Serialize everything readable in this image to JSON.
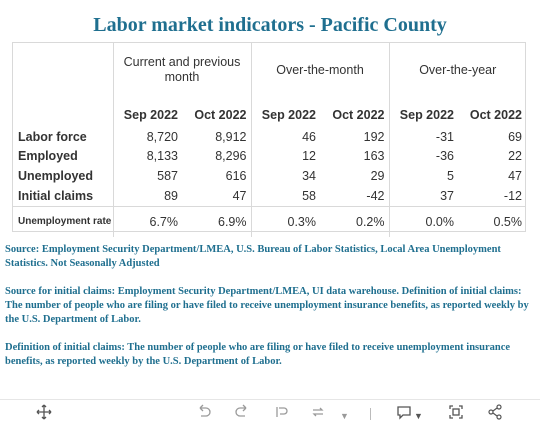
{
  "title": "Labor market indicators - Pacific County",
  "groups": [
    "Current and previous month",
    "Over-the-month",
    "Over-the-year"
  ],
  "columns": [
    "Sep 2022",
    "Oct 2022",
    "Sep 2022",
    "Oct 2022",
    "Sep 2022",
    "Oct 2022"
  ],
  "rows": [
    {
      "label": "Labor force",
      "values": [
        "8,720",
        "8,912",
        "46",
        "192",
        "-31",
        "69"
      ]
    },
    {
      "label": "Employed",
      "values": [
        "8,133",
        "8,296",
        "12",
        "163",
        "-36",
        "22"
      ]
    },
    {
      "label": "Unemployed",
      "values": [
        "587",
        "616",
        "34",
        "29",
        "5",
        "47"
      ]
    },
    {
      "label": "Initial claims",
      "values": [
        "89",
        "47",
        "58",
        "-42",
        "37",
        "-12"
      ]
    },
    {
      "label": "Unemployment rate",
      "values": [
        "6.7%",
        "6.9%",
        "0.3%",
        "0.2%",
        "0.0%",
        "0.5%"
      ]
    }
  ],
  "notes": {
    "source": "Source: Employment Security Department/LMEA, U.S. Bureau of Labor Statistics, Local Area Unemployment Statistics. Not Seasonally Adjusted",
    "claims_source": "Source for initial claims: Employment Security Department/LMEA, UI data warehouse. Definition of initial claims: The number of people who are filing or have filed to receive unemployment insurance benefits, as reported weekly by the U.S. Department of Labor.",
    "definition": "Definition of initial claims: The number of people who are filing or have filed to receive unemployment insurance benefits, as reported weekly by the U.S. Department of Labor."
  },
  "toolbar": {
    "move_icon": "move-icon",
    "undo_icon": "undo-icon",
    "redo_icon": "redo-icon",
    "revert_icon": "revert-icon",
    "refresh_icon": "refresh-icon",
    "comment_icon": "comment-icon",
    "fullscreen_icon": "fullscreen-icon",
    "share_icon": "share-icon"
  }
}
